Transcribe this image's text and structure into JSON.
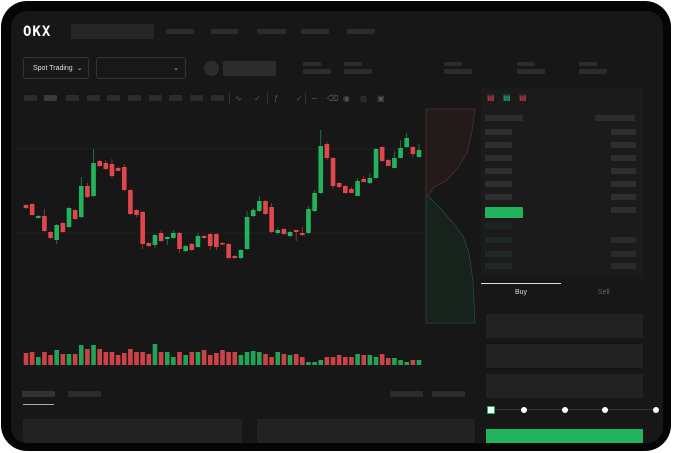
{
  "header": {
    "logo": "OKX",
    "search_placeholder": "",
    "nav_items": [
      "",
      "",
      "",
      "",
      ""
    ]
  },
  "market_bar": {
    "trading_mode": "Spot Trading",
    "pair_selector_value": ""
  },
  "toolbar": {
    "icons": [
      "line-chart-icon",
      "candle-type-icon",
      "indicator-icon",
      "wave-icon",
      "ruler-icon",
      "camera-icon",
      "settings-icon",
      "fullscreen-icon"
    ]
  },
  "order_book": {
    "view_icons": [
      "book-both-icon",
      "book-bids-icon",
      "book-asks-icon"
    ]
  },
  "order_form": {
    "tabs": [
      {
        "label": "Buy",
        "active": true
      },
      {
        "label": "Sell",
        "active": false
      }
    ],
    "slider_percent": 0,
    "slider_marks": [
      0,
      25,
      50,
      75,
      100
    ]
  },
  "colors": {
    "up": "#22b45c",
    "down": "#e0474c",
    "background": "#171717",
    "panel": "#1b1b1b"
  },
  "chart_data": {
    "type": "candlestick",
    "title": "",
    "grid": false,
    "ohlc": [
      [
        66,
        67,
        62,
        63
      ],
      [
        67,
        68,
        55,
        56
      ],
      [
        53,
        56,
        52,
        55
      ],
      [
        55,
        62,
        39,
        40
      ],
      [
        39,
        40,
        32,
        33
      ],
      [
        31,
        47,
        27,
        46
      ],
      [
        48,
        49,
        38,
        39
      ],
      [
        44,
        64,
        43,
        63
      ],
      [
        61,
        62,
        51,
        52
      ],
      [
        54,
        94,
        53,
        85
      ],
      [
        85,
        88,
        73,
        74
      ],
      [
        75,
        122,
        74,
        108
      ],
      [
        110,
        111,
        104,
        105
      ],
      [
        108,
        111,
        101,
        102
      ],
      [
        107,
        112,
        93,
        95
      ],
      [
        103,
        104,
        100,
        100
      ],
      [
        104,
        107,
        80,
        81
      ],
      [
        81,
        82,
        56,
        57
      ],
      [
        61,
        62,
        54,
        56
      ],
      [
        59,
        60,
        22,
        27
      ],
      [
        28,
        29,
        24,
        25
      ],
      [
        26,
        37,
        23,
        36
      ],
      [
        38,
        41,
        29,
        30
      ],
      [
        32,
        35,
        26,
        34
      ],
      [
        33,
        41,
        32,
        38
      ],
      [
        38,
        39,
        18,
        22
      ],
      [
        20,
        26,
        19,
        25
      ],
      [
        27,
        28,
        20,
        21
      ],
      [
        24,
        38,
        23,
        35
      ],
      [
        35,
        36,
        32,
        33
      ],
      [
        37,
        38,
        21,
        25
      ],
      [
        37,
        38,
        21,
        24
      ],
      [
        28,
        29,
        26,
        27
      ],
      [
        27,
        28,
        12,
        13
      ],
      [
        15,
        16,
        12,
        13
      ],
      [
        13,
        22,
        12,
        21
      ],
      [
        22,
        60,
        21,
        54
      ],
      [
        55,
        63,
        54,
        61
      ],
      [
        60,
        75,
        59,
        70
      ],
      [
        70,
        71,
        56,
        57
      ],
      [
        64,
        68,
        38,
        39
      ],
      [
        38,
        43,
        36,
        41
      ],
      [
        42,
        43,
        36,
        37
      ],
      [
        35,
        40,
        34,
        39
      ],
      [
        41,
        41,
        30,
        39
      ],
      [
        38,
        44,
        35,
        36
      ],
      [
        38,
        65,
        37,
        62
      ],
      [
        60,
        81,
        59,
        78
      ],
      [
        78,
        141,
        77,
        125
      ],
      [
        127,
        129,
        111,
        113
      ],
      [
        113,
        114,
        82,
        85
      ],
      [
        88,
        89,
        83,
        84
      ],
      [
        85,
        86,
        77,
        78
      ],
      [
        82,
        84,
        78,
        78
      ],
      [
        75,
        93,
        75,
        90
      ],
      [
        92,
        95,
        89,
        89
      ],
      [
        88,
        98,
        87,
        93
      ],
      [
        93,
        123,
        92,
        122
      ],
      [
        124,
        125,
        109,
        110
      ],
      [
        111,
        112,
        105,
        105
      ],
      [
        103,
        120,
        103,
        113
      ],
      [
        113,
        131,
        113,
        123
      ],
      [
        124,
        138,
        123,
        133
      ],
      [
        124,
        125,
        114,
        117
      ],
      [
        114,
        127,
        113,
        121
      ]
    ],
    "volume": [
      12,
      13,
      8,
      13,
      10,
      15,
      11,
      11,
      11,
      20,
      16,
      20,
      16,
      13,
      13,
      10,
      12,
      16,
      13,
      13,
      11,
      21,
      13,
      13,
      8,
      13,
      10,
      13,
      13,
      15,
      10,
      12,
      15,
      13,
      13,
      10,
      13,
      14,
      13,
      11,
      8,
      13,
      11,
      10,
      11,
      8,
      3,
      3,
      5,
      8,
      8,
      10,
      8,
      8,
      11,
      10,
      10,
      8,
      11,
      7,
      7,
      5,
      3,
      5,
      5
    ]
  }
}
